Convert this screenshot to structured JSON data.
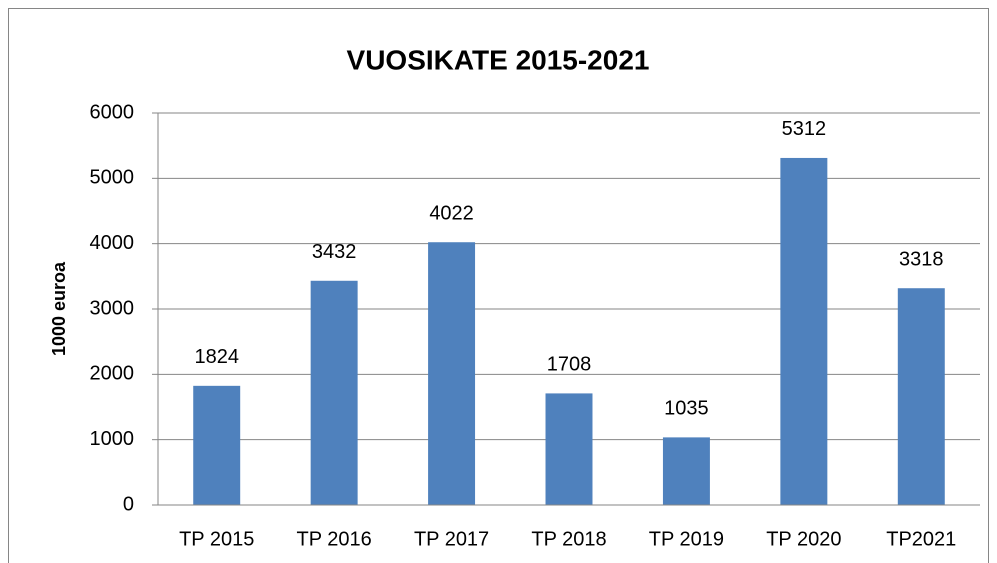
{
  "chart_data": {
    "type": "bar",
    "title": "VUOSIKATE 2015-2021",
    "y_label": "1000 euroa",
    "categories": [
      "TP 2015",
      "TP 2016",
      "TP 2017",
      "TP 2018",
      "TP 2019",
      "TP 2020",
      "TP2021"
    ],
    "values": [
      1824,
      3432,
      4022,
      1708,
      1035,
      5312,
      3318
    ],
    "color": "#4f81bd",
    "ylim": [
      0,
      6000
    ],
    "yticks": [
      0,
      1000,
      2000,
      3000,
      4000,
      5000,
      6000
    ],
    "grid": true
  }
}
